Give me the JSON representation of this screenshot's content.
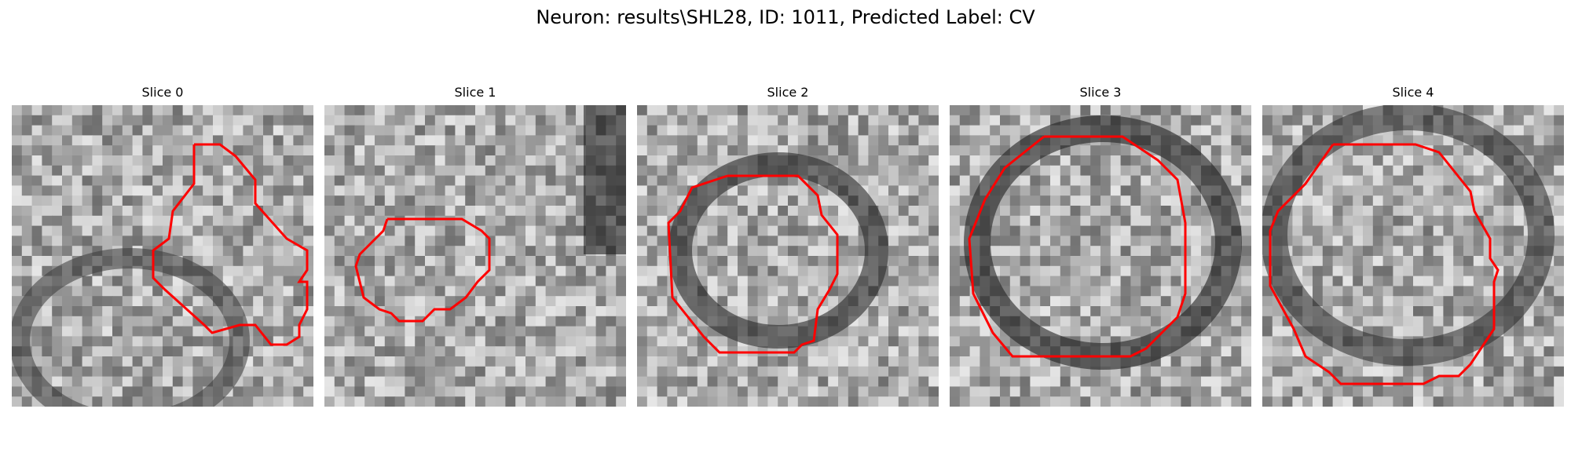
{
  "figure": {
    "title": "Neuron: results\\SHL28, ID: 1011, Predicted Label: CV",
    "contour_color": "#ff0000"
  },
  "panels": [
    {
      "title": "Slice 0",
      "image": "grayscale-em-patch-slice-0"
    },
    {
      "title": "Slice 1",
      "image": "grayscale-em-patch-slice-1"
    },
    {
      "title": "Slice 2",
      "image": "grayscale-em-patch-slice-2"
    },
    {
      "title": "Slice 3",
      "image": "grayscale-em-patch-slice-3"
    },
    {
      "title": "Slice 4",
      "image": "grayscale-em-patch-slice-4"
    }
  ]
}
